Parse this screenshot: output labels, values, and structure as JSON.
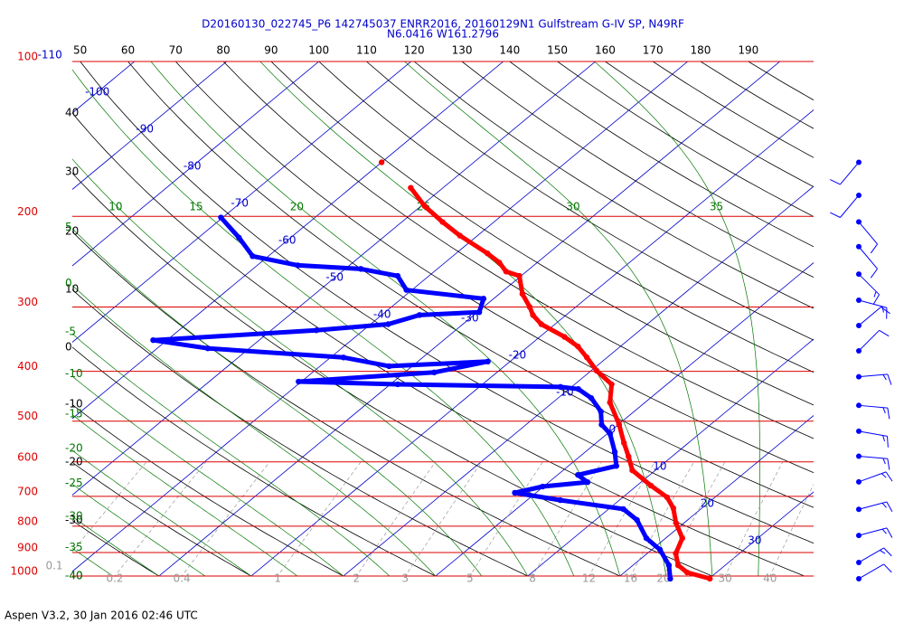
{
  "chart_data": {
    "type": "skewt",
    "title": "D20160130_022745_P6 142745037 ENRR2016, 20160129N1 Gulfstream G-IV SP, N49RF",
    "subtitle": "N6.0416 W161.2796",
    "footer": "Aspen V3.2, 30 Jan 2016  02:46 UTC",
    "ylim": [
      1000,
      100
    ],
    "ylog": true,
    "xlim": [
      -39.4,
      41
    ],
    "pressure_levels": [
      100,
      200,
      300,
      400,
      500,
      600,
      700,
      800,
      900,
      1000
    ],
    "pressure_color": "#dd0000",
    "isotherms": [
      -110,
      -100,
      -90,
      -80,
      -70,
      -60,
      -50,
      -40,
      -30,
      -20,
      -10,
      0,
      10,
      20,
      30
    ],
    "isotherm_color": "#0000cc",
    "dry_adiabats": [
      -40,
      -30,
      -20,
      -10,
      0,
      10,
      20,
      30,
      40,
      50,
      60,
      70,
      80,
      90,
      100,
      110,
      120,
      130,
      140,
      150,
      160,
      170,
      180,
      190
    ],
    "dry_adiabat_color": "#000000",
    "moist_adiabats": [
      -40,
      -35,
      -30,
      -25,
      -20,
      -15,
      -10,
      -5,
      0,
      5,
      10,
      15,
      20,
      25,
      30,
      35
    ],
    "moist_adiabat_color": "#007700",
    "mixing_ratios": [
      0.1,
      0.2,
      0.4,
      1,
      2,
      3,
      5,
      8,
      12,
      16,
      20,
      30,
      40
    ],
    "mixing_ratio_color": "#999999",
    "series": [
      {
        "color": "#ff0000",
        "pressure": [
          1012,
          984,
          953,
          904,
          844,
          788,
          738,
          703,
          667,
          623,
          586,
          551,
          508,
          460,
          424,
          399,
          376,
          358,
          343,
          324,
          311,
          300,
          283,
          261,
          256,
          246,
          236,
          218,
          205,
          191,
          176,
          null,
          157
        ],
        "values": [
          30.1,
          26.8,
          24.9,
          23.1,
          21.8,
          19.1,
          16.9,
          14.8,
          11.5,
          7.5,
          5.3,
          3.0,
          0.1,
          -3.8,
          -6.0,
          -9.4,
          -12.2,
          -14.6,
          -17.3,
          -21.5,
          -23.6,
          -25.0,
          -27.5,
          -30.2,
          -32.2,
          -34.1,
          -36.6,
          -41.9,
          -45.6,
          -49.6,
          -53.5,
          null,
          -60.0
        ]
      },
      {
        "color": "#0000ff",
        "pressure": [
          1012,
          953,
          889,
          844,
          778,
          741,
          712,
          689,
          670,
          657,
          636,
          611,
          574,
          529,
          508,
          479,
          451,
          433,
          429,
          424,
          419,
          402,
          383,
          391,
          376,
          361,
          348,
          333,
          324,
          311,
          307,
          289,
          278,
          261,
          253,
          249,
          239,
          220,
          201
        ],
        "values": [
          25.8,
          23.9,
          20.9,
          17.9,
          14.5,
          11.6,
          3.6,
          -2.3,
          -0.1,
          4.2,
          2.2,
          5.2,
          3.2,
          0.3,
          -1.8,
          -3.6,
          -6.4,
          -9.0,
          -11.2,
          -29.2,
          -40.3,
          -26.8,
          -22.4,
          -32.5,
          -38.6,
          -54.5,
          -61.5,
          -45.1,
          -38.1,
          -35.9,
          -29.8,
          -31.1,
          -40.6,
          -43.4,
          -48.3,
          -55.6,
          -61.7,
          -65.6,
          -70.2
        ]
      }
    ],
    "wind": {
      "color": "#0000ff",
      "pressure": [
        157,
        182,
        205,
        229,
        259,
        291,
        326,
        365,
        410,
        466,
        523,
        585,
        656,
        742,
        834,
        941,
        1012
      ],
      "direction": [
        220,
        220,
        140,
        140,
        135,
        105,
        50,
        45,
        85,
        95,
        100,
        95,
        70,
        75,
        75,
        60,
        60
      ],
      "speed": [
        10,
        10,
        10,
        10,
        15,
        15,
        10,
        10,
        15,
        15,
        15,
        15,
        15,
        15,
        15,
        15,
        10
      ]
    }
  }
}
